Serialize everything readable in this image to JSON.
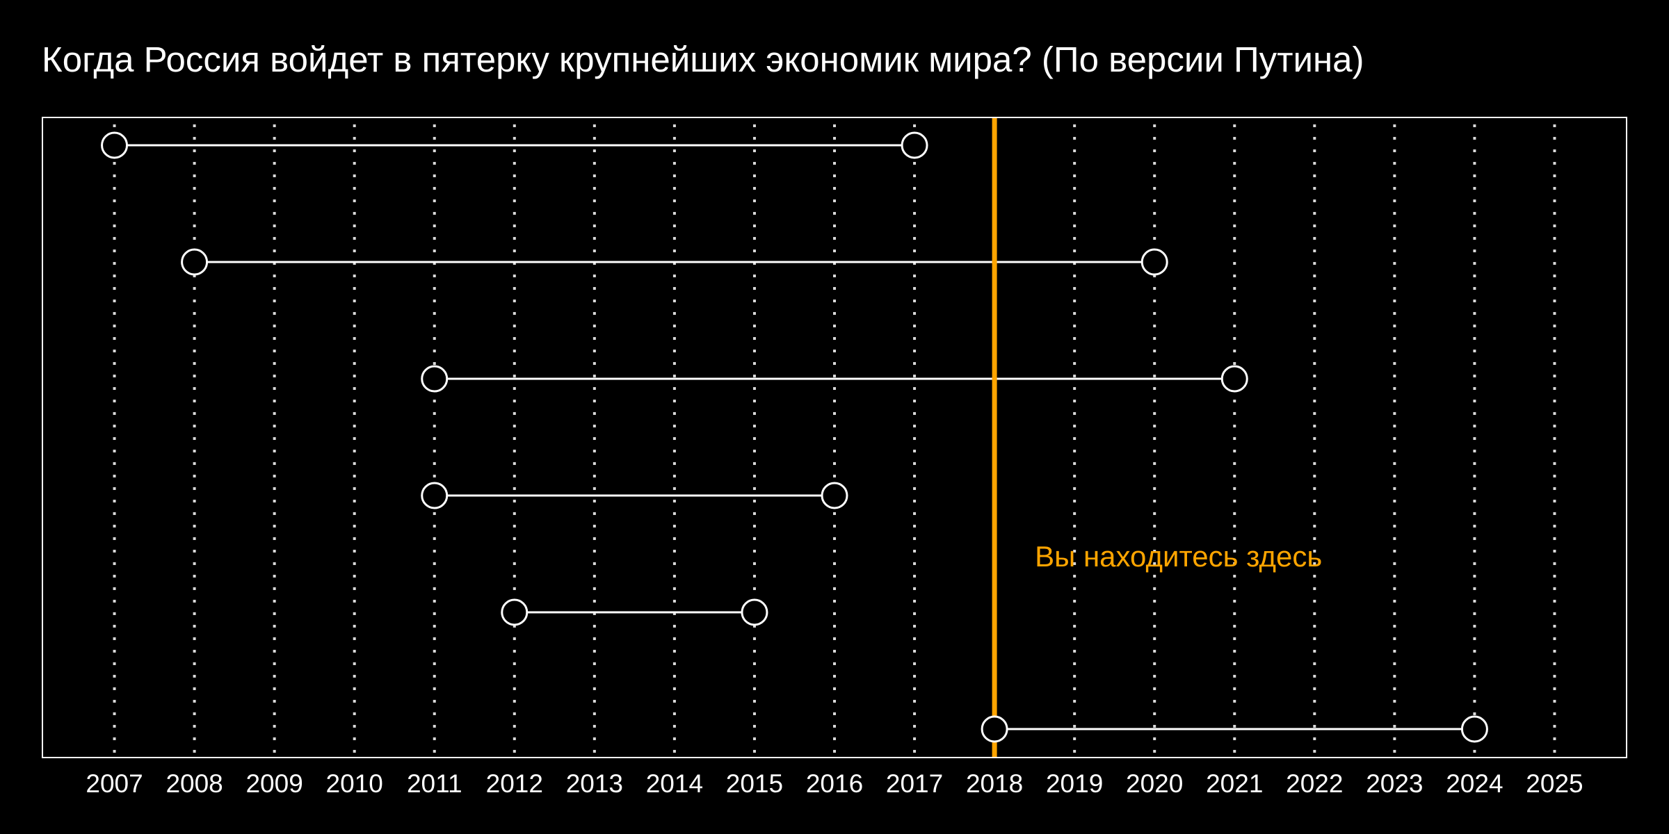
{
  "chart_data": {
    "type": "dumbbell",
    "title": "Когда Россия войдет в пятерку крупнейших экономик мира? (По версии Путина)",
    "xlabel": "",
    "ylabel": "",
    "x_ticks": [
      2007,
      2008,
      2009,
      2010,
      2011,
      2012,
      2013,
      2014,
      2015,
      2016,
      2017,
      2018,
      2019,
      2020,
      2021,
      2022,
      2023,
      2024,
      2025
    ],
    "xlim": [
      2006.1,
      2025.9
    ],
    "grid": "vertical-dotted",
    "series": [
      {
        "start": 2007,
        "end": 2017
      },
      {
        "start": 2008,
        "end": 2020
      },
      {
        "start": 2011,
        "end": 2021
      },
      {
        "start": 2011,
        "end": 2016
      },
      {
        "start": 2012,
        "end": 2015
      },
      {
        "start": 2018,
        "end": 2024
      }
    ],
    "reference_line": {
      "x": 2018,
      "label": "Вы находитесь здесь"
    }
  },
  "colors": {
    "background": "#000000",
    "foreground": "#ffffff",
    "grid": "#d9d9d9",
    "accent": "#ffa500"
  }
}
